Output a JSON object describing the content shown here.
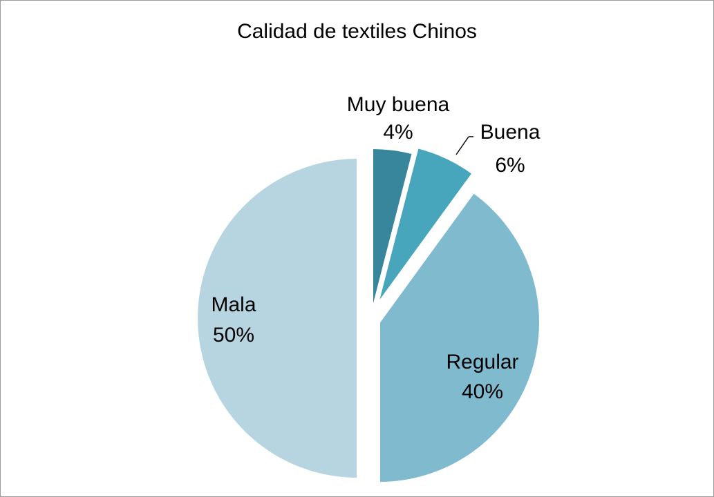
{
  "chart_data": {
    "type": "pie",
    "title": "Calidad de textiles Chinos",
    "slices": [
      {
        "label": "Muy buena",
        "value": 4,
        "display": "4%",
        "color": "#37869b"
      },
      {
        "label": "Buena",
        "value": 6,
        "display": "6%",
        "color": "#47a6bc"
      },
      {
        "label": "Regular",
        "value": 40,
        "display": "40%",
        "color": "#7fbace"
      },
      {
        "label": "Mala",
        "value": 50,
        "display": "50%",
        "color": "#b7d5e0"
      }
    ],
    "legend": "none",
    "grid": false
  }
}
